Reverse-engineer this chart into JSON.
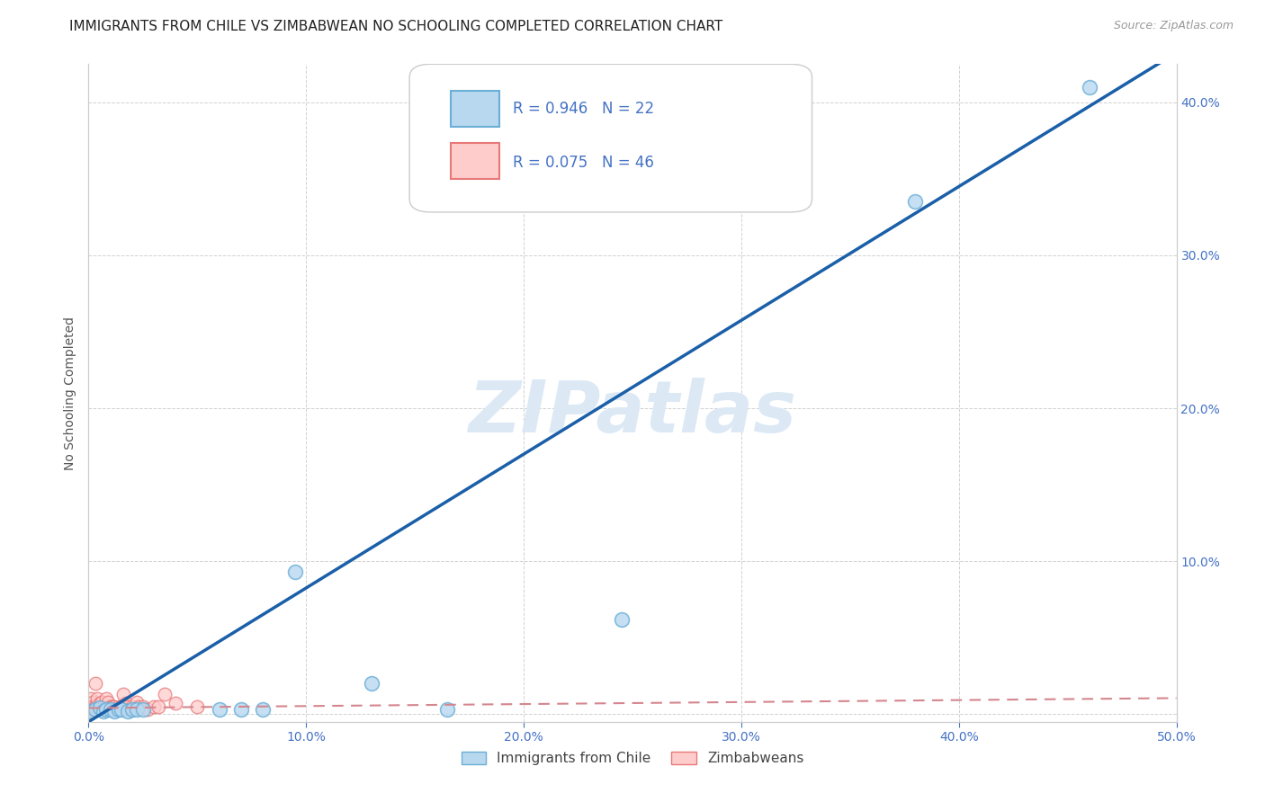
{
  "title": "IMMIGRANTS FROM CHILE VS ZIMBABWEAN NO SCHOOLING COMPLETED CORRELATION CHART",
  "source": "Source: ZipAtlas.com",
  "ylabel": "No Schooling Completed",
  "xlim": [
    0.0,
    0.5
  ],
  "ylim": [
    -0.005,
    0.425
  ],
  "xticks": [
    0.0,
    0.1,
    0.2,
    0.3,
    0.4,
    0.5
  ],
  "xticklabels": [
    "0.0%",
    "10.0%",
    "20.0%",
    "30.0%",
    "40.0%",
    "50.0%"
  ],
  "yticks_left": [
    0.0,
    0.1,
    0.2,
    0.3,
    0.4
  ],
  "yticklabels_left": [
    "",
    "",
    "",
    "",
    ""
  ],
  "right_yticks": [
    0.1,
    0.2,
    0.3,
    0.4
  ],
  "right_yticklabels": [
    "10.0%",
    "20.0%",
    "30.0%",
    "40.0%"
  ],
  "legend1_r": "0.946",
  "legend1_n": "22",
  "legend2_r": "0.075",
  "legend2_n": "46",
  "trendline1_color": "#1a5fa8",
  "trendline2_color": "#d4868e",
  "watermark": "ZIPatlas",
  "watermark_color": "#dce9f5",
  "chile_points_x": [
    0.001,
    0.003,
    0.005,
    0.007,
    0.008,
    0.01,
    0.012,
    0.014,
    0.015,
    0.018,
    0.02,
    0.022,
    0.025,
    0.06,
    0.07,
    0.08,
    0.095,
    0.13,
    0.165,
    0.245,
    0.38,
    0.46
  ],
  "chile_points_y": [
    0.002,
    0.003,
    0.004,
    0.002,
    0.003,
    0.003,
    0.002,
    0.003,
    0.003,
    0.002,
    0.003,
    0.003,
    0.003,
    0.003,
    0.003,
    0.003,
    0.093,
    0.02,
    0.003,
    0.062,
    0.335,
    0.41
  ],
  "zim_points_x": [
    0.0,
    0.001,
    0.001,
    0.002,
    0.002,
    0.002,
    0.003,
    0.003,
    0.003,
    0.004,
    0.004,
    0.005,
    0.005,
    0.005,
    0.006,
    0.006,
    0.006,
    0.007,
    0.007,
    0.008,
    0.008,
    0.009,
    0.009,
    0.01,
    0.01,
    0.011,
    0.011,
    0.012,
    0.013,
    0.014,
    0.015,
    0.016,
    0.017,
    0.018,
    0.019,
    0.02,
    0.021,
    0.022,
    0.023,
    0.025,
    0.027,
    0.03,
    0.032,
    0.035,
    0.04,
    0.05
  ],
  "zim_points_y": [
    0.005,
    0.003,
    0.01,
    0.008,
    0.005,
    0.003,
    0.02,
    0.005,
    0.005,
    0.003,
    0.01,
    0.005,
    0.005,
    0.007,
    0.003,
    0.005,
    0.008,
    0.005,
    0.003,
    0.005,
    0.01,
    0.003,
    0.008,
    0.005,
    0.005,
    0.005,
    0.003,
    0.005,
    0.003,
    0.005,
    0.005,
    0.013,
    0.007,
    0.005,
    0.003,
    0.005,
    0.003,
    0.008,
    0.005,
    0.005,
    0.003,
    0.005,
    0.005,
    0.013,
    0.007,
    0.005
  ],
  "grid_color": "#cccccc",
  "bg_color": "#ffffff",
  "tick_color": "#4472c4",
  "title_color": "#222222",
  "title_fontsize": 11,
  "axis_label_color": "#555555"
}
